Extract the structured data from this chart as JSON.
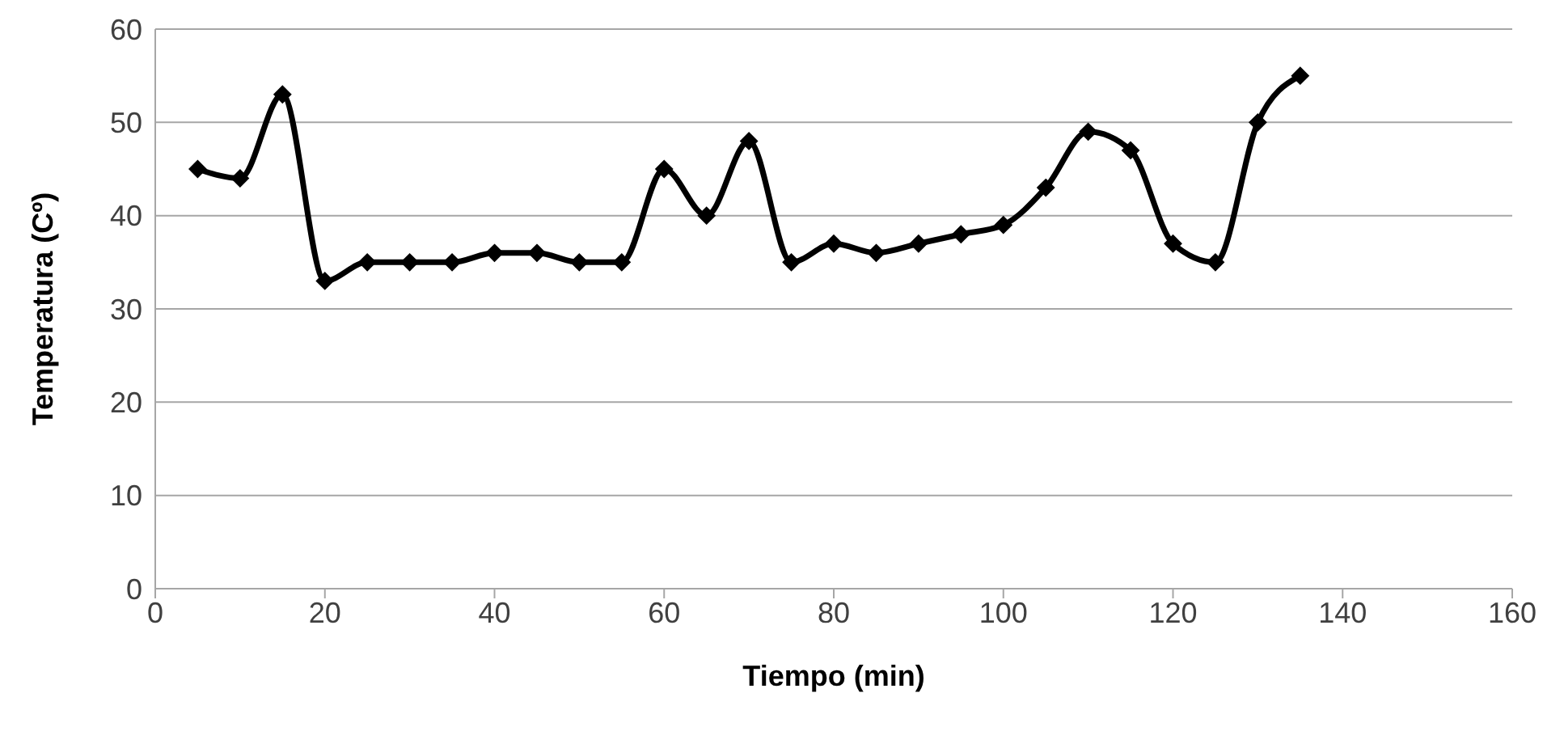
{
  "chart_data": {
    "type": "line",
    "xlabel": "Tiempo (min)",
    "ylabel": "Temperatura (Cº)",
    "x": [
      5,
      10,
      15,
      20,
      25,
      30,
      35,
      40,
      45,
      50,
      55,
      60,
      65,
      70,
      75,
      80,
      85,
      90,
      95,
      100,
      105,
      110,
      115,
      120,
      125,
      130,
      135
    ],
    "series": [
      {
        "color": "#000000",
        "values": [
          45,
          44,
          53,
          33,
          35,
          35,
          35,
          36,
          36,
          35,
          35,
          45,
          40,
          48,
          35,
          37,
          36,
          37,
          38,
          39,
          43,
          49,
          47,
          37,
          35,
          50,
          55
        ]
      }
    ],
    "xlim": [
      0,
      160
    ],
    "xticks": [
      0,
      20,
      40,
      60,
      80,
      100,
      120,
      140,
      160
    ],
    "ylim": [
      0,
      60
    ],
    "yticks": [
      0,
      10,
      20,
      30,
      40,
      50,
      60
    ],
    "grid": "y",
    "marker": "diamond",
    "line_style": "solid"
  }
}
